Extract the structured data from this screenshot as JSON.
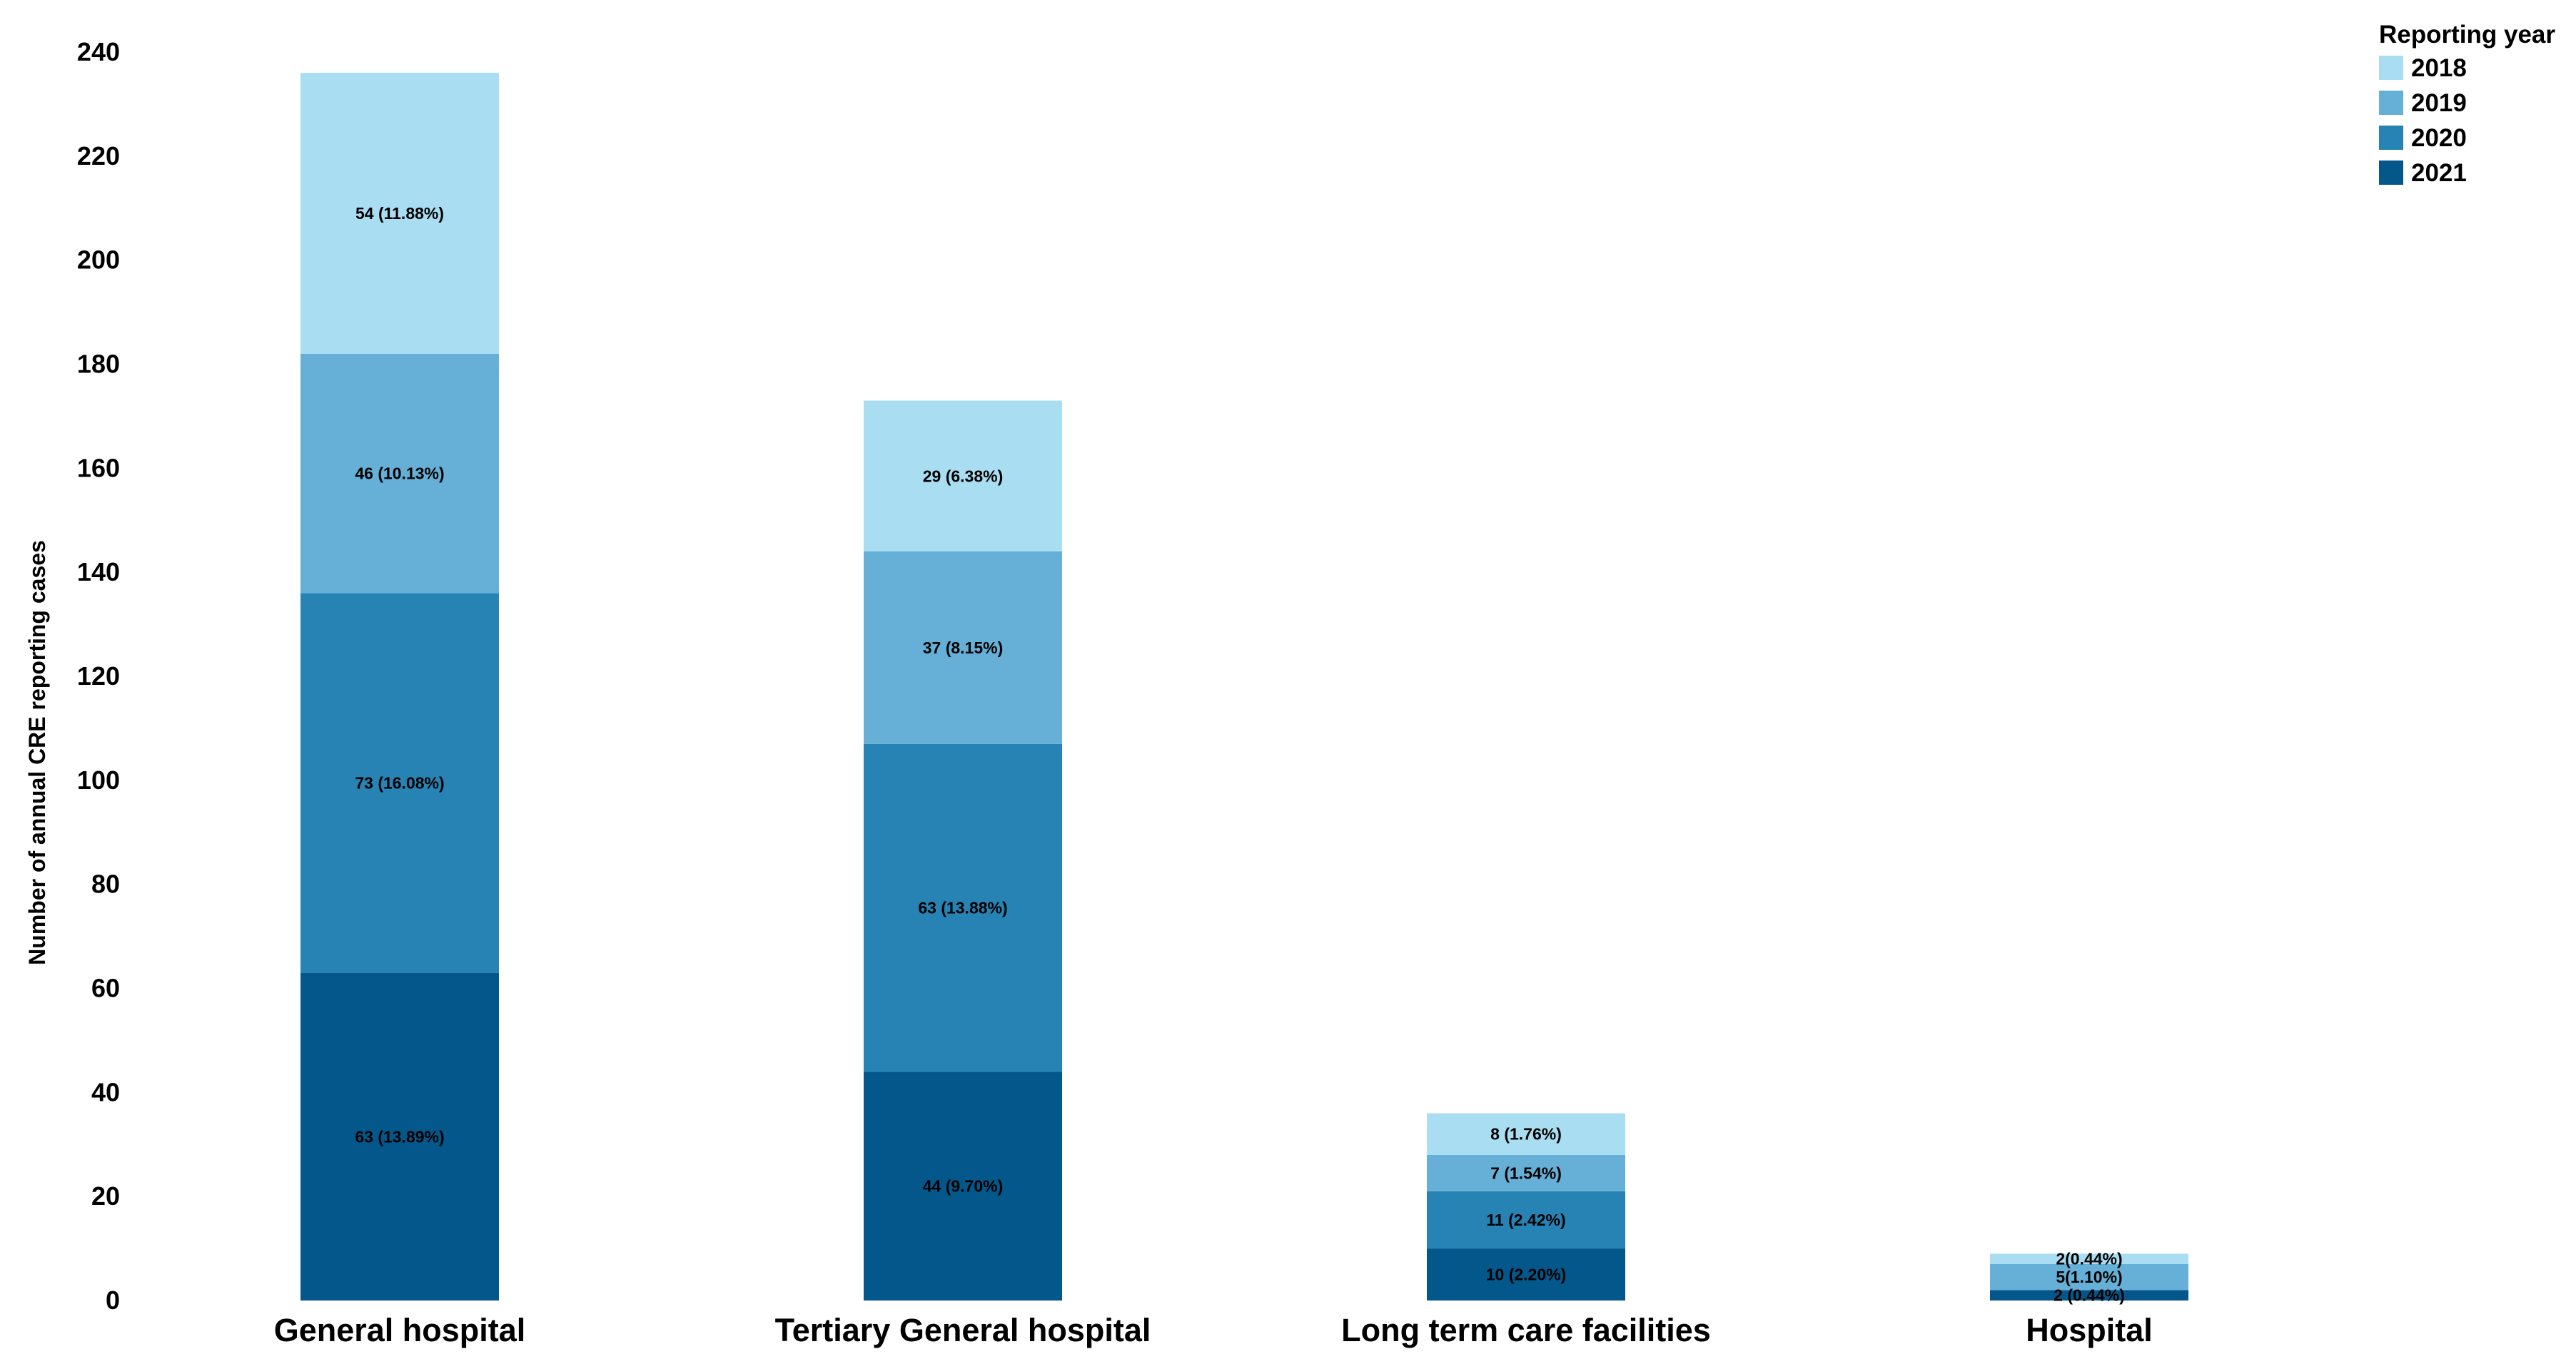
{
  "chart_data": {
    "type": "bar",
    "stacked": true,
    "title": "",
    "xlabel": "",
    "ylabel": "Number of annual CRE reporting cases",
    "ylim": [
      0,
      240
    ],
    "yticks": [
      0,
      20,
      40,
      60,
      80,
      100,
      120,
      140,
      160,
      180,
      200,
      220,
      240
    ],
    "grid": false,
    "categories": [
      "General hospital",
      "Tertiary General hospital",
      "Long term care facilities",
      "Hospital"
    ],
    "legend": {
      "title": "Reporting year",
      "placement": "top-right"
    },
    "series": [
      {
        "name": "2021",
        "color": "#03578a",
        "values": [
          63,
          44,
          10,
          2
        ],
        "labels": [
          "63 (13.89%)",
          "44 (9.70%)",
          "10 (2.20%)",
          "2 (0.44%)"
        ]
      },
      {
        "name": "2020",
        "color": "#2683b4",
        "values": [
          73,
          63,
          11,
          0
        ],
        "labels": [
          "73 (16.08%)",
          "63 (13.88%)",
          "11 (2.42%)",
          ""
        ]
      },
      {
        "name": "2019",
        "color": "#66b0d7",
        "values": [
          46,
          37,
          7,
          5
        ],
        "labels": [
          "46 (10.13%)",
          "37 (8.15%)",
          "7 (1.54%)",
          "5(1.10%)"
        ]
      },
      {
        "name": "2018",
        "color": "#a9ddf2",
        "values": [
          54,
          29,
          8,
          2
        ],
        "labels": [
          "54 (11.88%)",
          "29 (6.38%)",
          "8 (1.76%)",
          "2(0.44%)"
        ]
      }
    ]
  }
}
